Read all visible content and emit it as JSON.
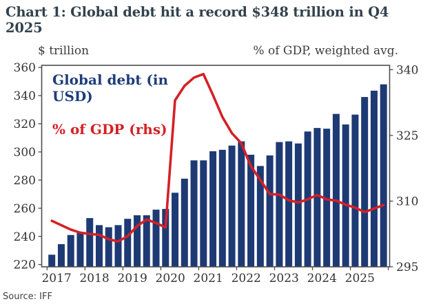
{
  "title": "Chart 1: Global debt hit a record $348 trillion in Q4 2025",
  "source": "Source: IFF",
  "legend": {
    "debt": "Global debt (in USD)",
    "gdp": "% of GDP (rhs)"
  },
  "colors": {
    "bar": "#1e3a74",
    "line": "#d42125",
    "title_text": "#33424d",
    "axis_text": "#333333",
    "border": "#4d4d4d",
    "legend_debt_text": "#1f3d7a",
    "legend_gdp_text": "#d42125",
    "source_text": "#3f3f3f"
  },
  "chart_data": {
    "type": "combo",
    "title": "Chart 1: Global debt hit a record $348 trillion in Q4 2025",
    "grid": false,
    "legend_position": "top-left-inside",
    "quarters": [
      "2017 Q1",
      "2017 Q2",
      "2017 Q3",
      "2017 Q4",
      "2018 Q1",
      "2018 Q2",
      "2018 Q3",
      "2018 Q4",
      "2019 Q1",
      "2019 Q2",
      "2019 Q3",
      "2019 Q4",
      "2020 Q1",
      "2020 Q2",
      "2020 Q3",
      "2020 Q4",
      "2021 Q1",
      "2021 Q2",
      "2021 Q3",
      "2021 Q4",
      "2022 Q1",
      "2022 Q2",
      "2022 Q3",
      "2022 Q4",
      "2023 Q1",
      "2023 Q2",
      "2023 Q3",
      "2023 Q4",
      "2024 Q1",
      "2024 Q2",
      "2024 Q3",
      "2024 Q4",
      "2025 Q1",
      "2025 Q2",
      "2025 Q3",
      "2025 Q4"
    ],
    "series": [
      {
        "name": "Global debt (in USD)",
        "type": "bar",
        "axis": "left",
        "color": "#1e3a74",
        "values": [
          227,
          234.5,
          241,
          243,
          253,
          248,
          246.5,
          248,
          252.5,
          255,
          255,
          259,
          259.5,
          271,
          281,
          294,
          294,
          300.5,
          301.5,
          304.5,
          307.5,
          298,
          290,
          297.5,
          307,
          307.5,
          306,
          314.5,
          317,
          316.5,
          327,
          319.5,
          326.5,
          339,
          343.5,
          348
        ]
      },
      {
        "name": "% of GDP (rhs)",
        "type": "line",
        "axis": "right",
        "color": "#d42125",
        "values": [
          305.5,
          304.5,
          303.5,
          302.8,
          302.5,
          302.3,
          301.3,
          300.8,
          302,
          304.3,
          305.8,
          305,
          304,
          333,
          336.3,
          338.2,
          339,
          334.2,
          329.2,
          325.5,
          323.2,
          318,
          314.8,
          311.6,
          311.5,
          310.2,
          309.7,
          310.4,
          311.4,
          310.4,
          310.1,
          309.2,
          308.5,
          307.5,
          308.3,
          309.1
        ]
      }
    ],
    "left_axis": {
      "label": "$ trillion",
      "ticks": [
        360,
        340,
        320,
        300,
        280,
        260,
        240,
        220
      ],
      "range": [
        218.4,
        361.5
      ]
    },
    "right_axis": {
      "label": "% of GDP, weighted avg.",
      "ticks": [
        340,
        325,
        310,
        295
      ],
      "range": [
        295,
        341
      ]
    },
    "x_axis": {
      "tick_labels": [
        "2017",
        "2018",
        "2019",
        "2020",
        "2021",
        "2022",
        "2023",
        "2024",
        "2025"
      ]
    }
  }
}
